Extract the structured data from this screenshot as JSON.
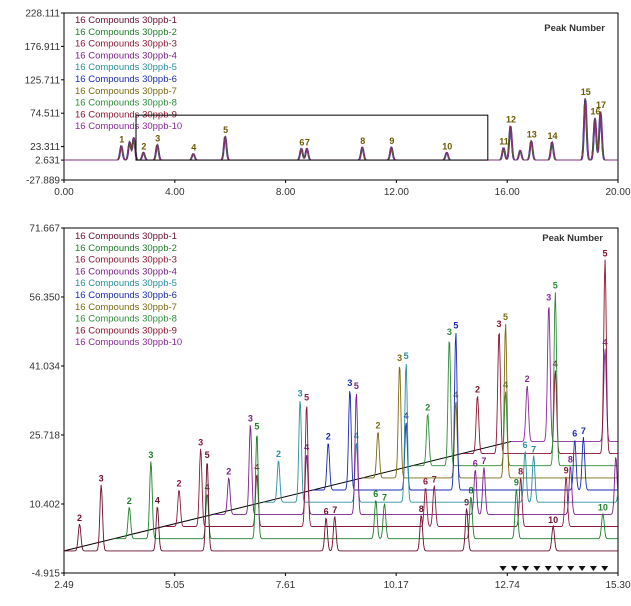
{
  "colors": {
    "series": [
      "#6b0f2e",
      "#1f7f2a",
      "#8b1a3a",
      "#7a1f8c",
      "#2a8fa0",
      "#1a2bb0",
      "#7a6b10",
      "#2d8c3a",
      "#8e1530",
      "#8a2a9a"
    ],
    "frame": "#000000",
    "marker": "#111111"
  },
  "chart_data": [
    {
      "type": "line",
      "title": "Peak Number",
      "xlabel": "",
      "ylabel": "",
      "xlim": [
        0.0,
        20.0
      ],
      "ylim": [
        -27.889,
        228.111
      ],
      "x_tick_labels": [
        "0.00",
        "4.00",
        "8.00",
        "12.00",
        "16.00",
        "20.00"
      ],
      "y_tick_labels": [
        "228.111",
        "176.911",
        "125.711",
        "74.511",
        "23.311",
        "2.631",
        "-27.889"
      ],
      "series": [
        {
          "name": "16 Compounds 30ppb-1"
        },
        {
          "name": "16 Compounds 30ppb-2"
        },
        {
          "name": "16 Compounds 30ppb-3"
        },
        {
          "name": "16 Compounds 30ppb-4"
        },
        {
          "name": "16 Compounds 30ppb-5"
        },
        {
          "name": "16 Compounds 30ppb-6"
        },
        {
          "name": "16 Compounds 30ppb-7"
        },
        {
          "name": "16 Compounds 30ppb-8"
        },
        {
          "name": "16 Compounds 30ppb-9"
        },
        {
          "name": "16 Compounds 30ppb-10"
        }
      ],
      "peaks": [
        {
          "label": "1",
          "x": 2.05,
          "height": 22
        },
        {
          "label": "",
          "x": 2.35,
          "height": 28
        },
        {
          "label": "",
          "x": 2.5,
          "height": 35
        },
        {
          "label": "2",
          "x": 2.85,
          "height": 12
        },
        {
          "label": "3",
          "x": 3.35,
          "height": 24
        },
        {
          "label": "4",
          "x": 4.65,
          "height": 10
        },
        {
          "label": "5",
          "x": 5.8,
          "height": 37
        },
        {
          "label": "6",
          "x": 8.55,
          "height": 18
        },
        {
          "label": "7",
          "x": 8.75,
          "height": 18
        },
        {
          "label": "8",
          "x": 10.75,
          "height": 20
        },
        {
          "label": "9",
          "x": 11.8,
          "height": 20
        },
        {
          "label": "10",
          "x": 13.8,
          "height": 12
        },
        {
          "label": "11",
          "x": 15.85,
          "height": 19
        },
        {
          "label": "12",
          "x": 16.1,
          "height": 53
        },
        {
          "label": "",
          "x": 16.45,
          "height": 15
        },
        {
          "label": "13",
          "x": 16.85,
          "height": 30
        },
        {
          "label": "14",
          "x": 17.6,
          "height": 28
        },
        {
          "label": "15",
          "x": 18.8,
          "height": 95
        },
        {
          "label": "16",
          "x": 19.15,
          "height": 65
        },
        {
          "label": "17",
          "x": 19.35,
          "height": 75
        }
      ],
      "zoom_box": {
        "x_start": 2.6,
        "x_end": 15.3
      }
    },
    {
      "type": "line",
      "title": "Peak Number",
      "xlabel": "",
      "ylabel": "",
      "xlim": [
        2.49,
        15.3
      ],
      "ylim": [
        -4.915,
        71.667
      ],
      "x_tick_labels": [
        "2.49",
        "5.05",
        "7.61",
        "10.17",
        "12.74",
        "15.30"
      ],
      "y_tick_labels": [
        "71.667",
        "56.350",
        "41.034",
        "25.718",
        "10.402",
        "-4.915"
      ],
      "series": [
        {
          "name": "16 Compounds 30ppb-1"
        },
        {
          "name": "16 Compounds 30ppb-2"
        },
        {
          "name": "16 Compounds 30ppb-3"
        },
        {
          "name": "16 Compounds 30ppb-4"
        },
        {
          "name": "16 Compounds 30ppb-5"
        },
        {
          "name": "16 Compounds 30ppb-6"
        },
        {
          "name": "16 Compounds 30ppb-7"
        },
        {
          "name": "16 Compounds 30ppb-8"
        },
        {
          "name": "16 Compounds 30ppb-9"
        },
        {
          "name": "16 Compounds 30ppb-10"
        }
      ],
      "trace_offset": {
        "x": 1.15,
        "y": 2.7
      },
      "peaks": [
        {
          "label": "2",
          "x": 2.85,
          "height": 6
        },
        {
          "label": "3",
          "x": 3.35,
          "height": 14
        },
        {
          "label": "4",
          "x": 4.65,
          "height": 9
        },
        {
          "label": "5",
          "x": 5.8,
          "height": 20
        },
        {
          "label": "6",
          "x": 8.55,
          "height": 7
        },
        {
          "label": "7",
          "x": 8.75,
          "height": 7
        },
        {
          "label": "8",
          "x": 10.75,
          "height": 8
        },
        {
          "label": "9",
          "x": 11.8,
          "height": 9
        },
        {
          "label": "10",
          "x": 13.8,
          "height": 5
        }
      ],
      "marker_count": 10
    }
  ]
}
